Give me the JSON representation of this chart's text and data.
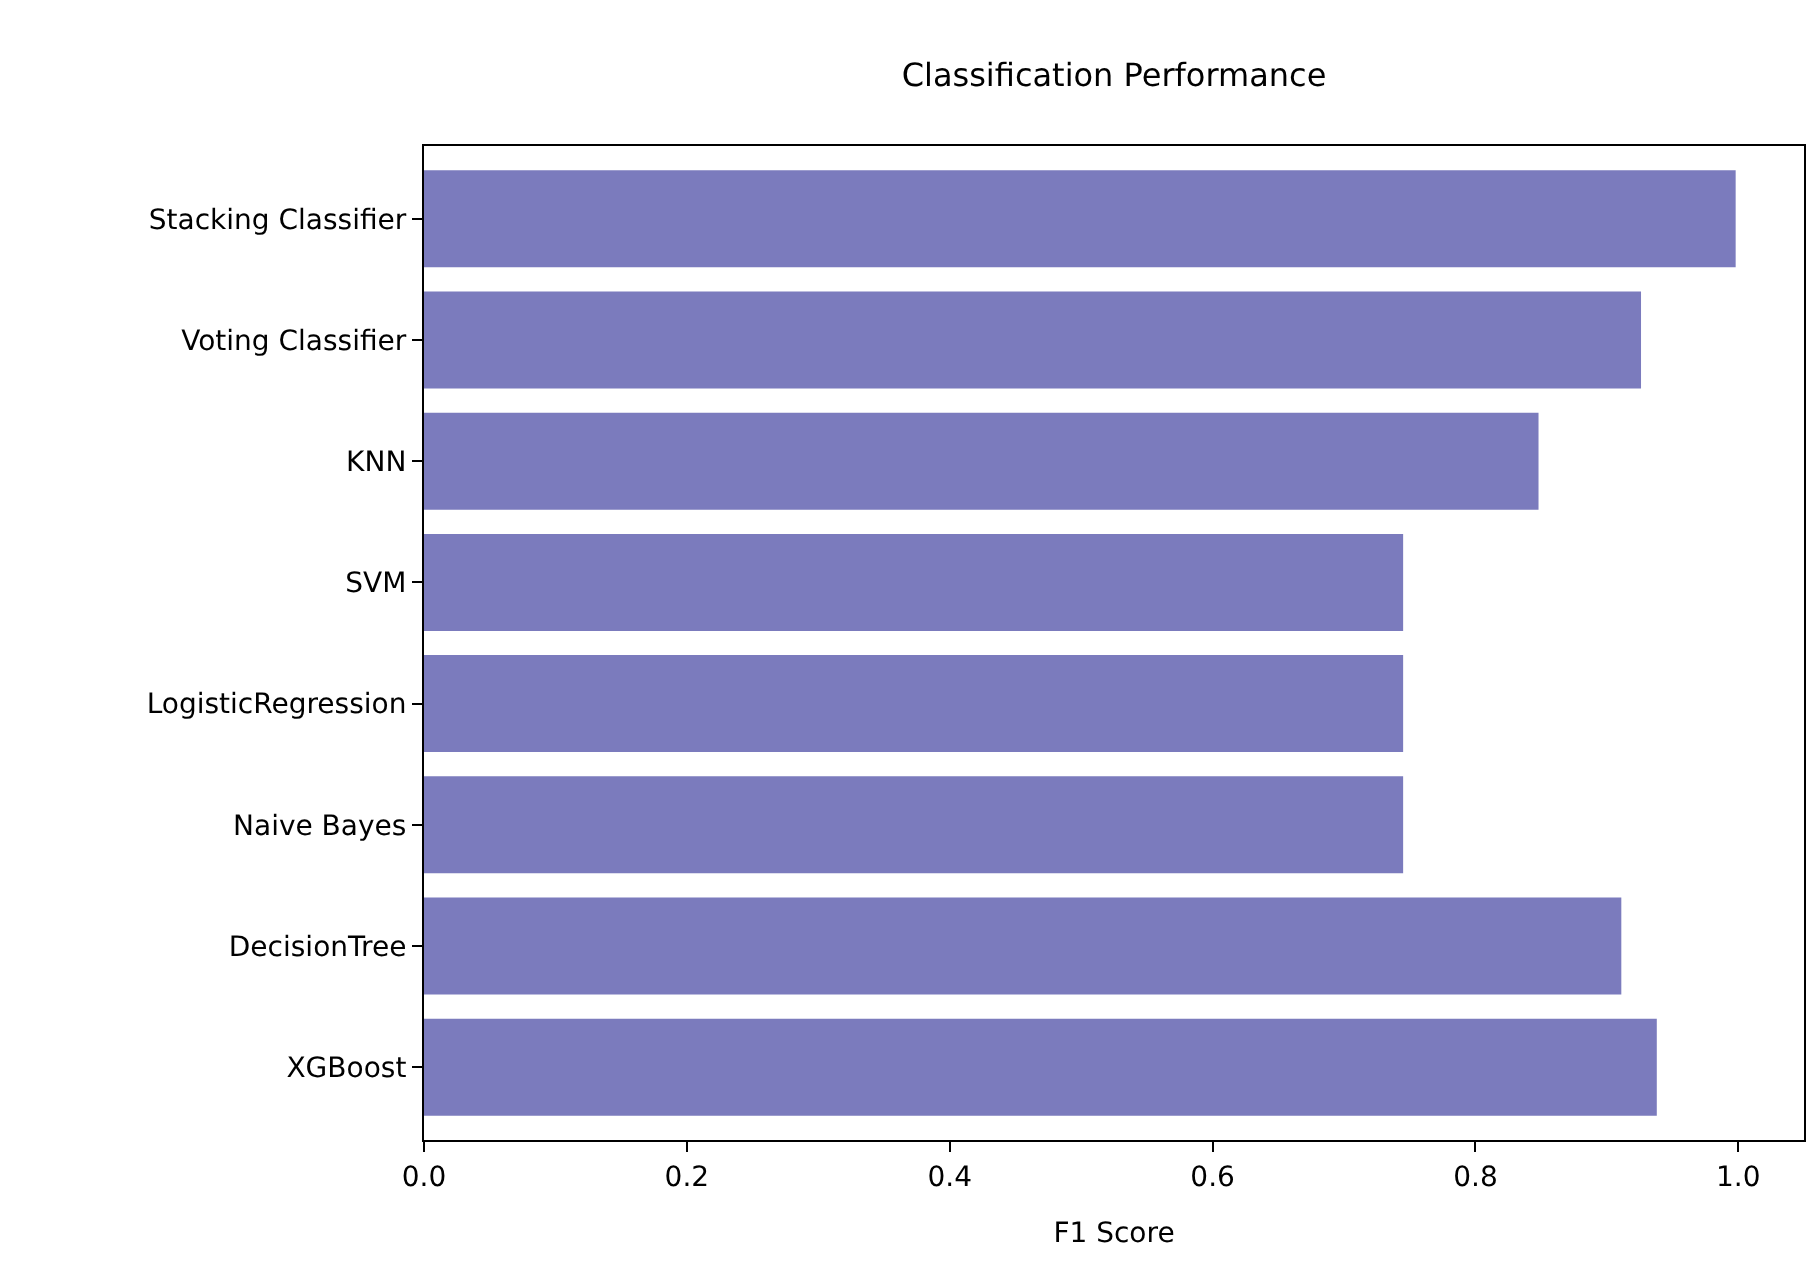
{
  "chart_data": {
    "type": "bar",
    "orientation": "horizontal",
    "title": "Classification Performance",
    "xlabel": "F1 Score",
    "categories": [
      "Stacking Classifier",
      "Voting Classifier",
      "KNN",
      "SVM",
      "LogisticRegression",
      "Naive Bayes",
      "DecisionTree",
      "XGBoost"
    ],
    "values": [
      0.998,
      0.926,
      0.848,
      0.745,
      0.745,
      0.745,
      0.911,
      0.938
    ],
    "color": "#7b7bbd",
    "xlim": [
      0,
      1.05
    ],
    "xticks": [
      {
        "value": 0,
        "label": "0.0"
      },
      0.2,
      0.4,
      0.6,
      0.8,
      {
        "value": 1,
        "label": "1.0"
      }
    ]
  }
}
